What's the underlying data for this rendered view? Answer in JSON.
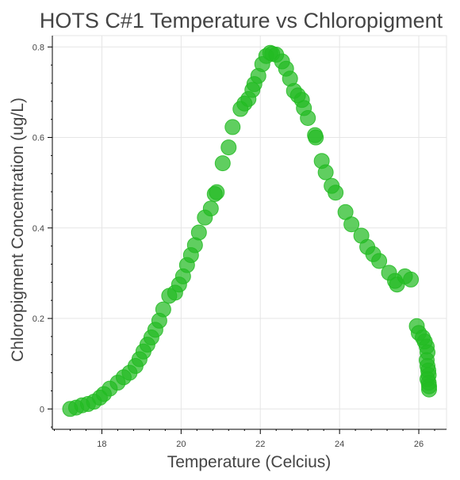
{
  "chart_data": {
    "type": "scatter",
    "title": "HOTS C#1 Temperature vs Chloropigment",
    "xlabel": "Temperature (Celcius)",
    "ylabel": "Chloropigment Concentration (ug/L)",
    "xlim": [
      16.75,
      26.7
    ],
    "ylim": [
      -0.045,
      0.825
    ],
    "xticks": [
      18,
      20,
      22,
      24,
      26
    ],
    "yticks": [
      0,
      0.2,
      0.4,
      0.6,
      0.8
    ],
    "xtick_labels": [
      "18",
      "20",
      "22",
      "24",
      "26"
    ],
    "ytick_labels": [
      "0",
      "0.2",
      "0.4",
      "0.6",
      "0.8"
    ],
    "grid": true,
    "marker_color": "#22bb22",
    "points": [
      {
        "x": 17.2,
        "y": 0.0
      },
      {
        "x": 17.35,
        "y": 0.003
      },
      {
        "x": 17.5,
        "y": 0.008
      },
      {
        "x": 17.65,
        "y": 0.011
      },
      {
        "x": 17.8,
        "y": 0.016
      },
      {
        "x": 17.95,
        "y": 0.025
      },
      {
        "x": 18.05,
        "y": 0.033
      },
      {
        "x": 18.2,
        "y": 0.045
      },
      {
        "x": 18.4,
        "y": 0.058
      },
      {
        "x": 18.55,
        "y": 0.07
      },
      {
        "x": 18.7,
        "y": 0.08
      },
      {
        "x": 18.85,
        "y": 0.095
      },
      {
        "x": 18.95,
        "y": 0.11
      },
      {
        "x": 19.05,
        "y": 0.127
      },
      {
        "x": 19.15,
        "y": 0.142
      },
      {
        "x": 19.25,
        "y": 0.158
      },
      {
        "x": 19.35,
        "y": 0.175
      },
      {
        "x": 19.45,
        "y": 0.195
      },
      {
        "x": 19.55,
        "y": 0.22
      },
      {
        "x": 19.7,
        "y": 0.25
      },
      {
        "x": 19.85,
        "y": 0.257
      },
      {
        "x": 19.95,
        "y": 0.275
      },
      {
        "x": 20.05,
        "y": 0.293
      },
      {
        "x": 20.15,
        "y": 0.318
      },
      {
        "x": 20.25,
        "y": 0.34
      },
      {
        "x": 20.35,
        "y": 0.362
      },
      {
        "x": 20.45,
        "y": 0.39
      },
      {
        "x": 20.6,
        "y": 0.423
      },
      {
        "x": 20.75,
        "y": 0.443
      },
      {
        "x": 20.85,
        "y": 0.475
      },
      {
        "x": 20.9,
        "y": 0.479
      },
      {
        "x": 21.05,
        "y": 0.543
      },
      {
        "x": 21.2,
        "y": 0.578
      },
      {
        "x": 21.3,
        "y": 0.623
      },
      {
        "x": 21.5,
        "y": 0.663
      },
      {
        "x": 21.6,
        "y": 0.675
      },
      {
        "x": 21.7,
        "y": 0.685
      },
      {
        "x": 21.8,
        "y": 0.705
      },
      {
        "x": 21.85,
        "y": 0.718
      },
      {
        "x": 21.95,
        "y": 0.736
      },
      {
        "x": 22.05,
        "y": 0.762
      },
      {
        "x": 22.15,
        "y": 0.78
      },
      {
        "x": 22.25,
        "y": 0.787
      },
      {
        "x": 22.3,
        "y": 0.785
      },
      {
        "x": 22.4,
        "y": 0.783
      },
      {
        "x": 22.55,
        "y": 0.768
      },
      {
        "x": 22.65,
        "y": 0.752
      },
      {
        "x": 22.75,
        "y": 0.73
      },
      {
        "x": 22.85,
        "y": 0.703
      },
      {
        "x": 22.95,
        "y": 0.693
      },
      {
        "x": 23.05,
        "y": 0.683
      },
      {
        "x": 23.1,
        "y": 0.665
      },
      {
        "x": 23.2,
        "y": 0.643
      },
      {
        "x": 23.38,
        "y": 0.605
      },
      {
        "x": 23.4,
        "y": 0.6
      },
      {
        "x": 23.55,
        "y": 0.548
      },
      {
        "x": 23.65,
        "y": 0.523
      },
      {
        "x": 23.8,
        "y": 0.493
      },
      {
        "x": 23.9,
        "y": 0.478
      },
      {
        "x": 24.15,
        "y": 0.435
      },
      {
        "x": 24.3,
        "y": 0.408
      },
      {
        "x": 24.55,
        "y": 0.383
      },
      {
        "x": 24.7,
        "y": 0.358
      },
      {
        "x": 24.85,
        "y": 0.342
      },
      {
        "x": 25.0,
        "y": 0.327
      },
      {
        "x": 25.25,
        "y": 0.301
      },
      {
        "x": 25.4,
        "y": 0.283
      },
      {
        "x": 25.45,
        "y": 0.275
      },
      {
        "x": 25.65,
        "y": 0.293
      },
      {
        "x": 25.8,
        "y": 0.286
      },
      {
        "x": 25.95,
        "y": 0.183
      },
      {
        "x": 26.0,
        "y": 0.168
      },
      {
        "x": 26.1,
        "y": 0.158
      },
      {
        "x": 26.15,
        "y": 0.149
      },
      {
        "x": 26.2,
        "y": 0.138
      },
      {
        "x": 26.22,
        "y": 0.125
      },
      {
        "x": 26.2,
        "y": 0.108
      },
      {
        "x": 26.22,
        "y": 0.095
      },
      {
        "x": 26.24,
        "y": 0.085
      },
      {
        "x": 26.25,
        "y": 0.075
      },
      {
        "x": 26.22,
        "y": 0.066
      },
      {
        "x": 26.25,
        "y": 0.058
      },
      {
        "x": 26.26,
        "y": 0.05
      },
      {
        "x": 26.26,
        "y": 0.043
      }
    ]
  }
}
